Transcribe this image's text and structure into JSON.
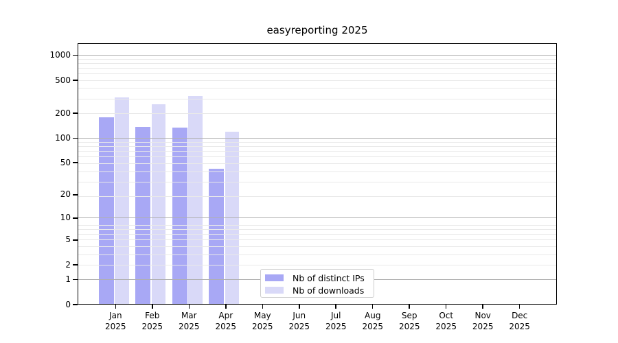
{
  "figure": {
    "background": "#ffffff",
    "axis_color": "#000000"
  },
  "chart_data": {
    "type": "bar",
    "title": "easyreporting 2025",
    "categories": [
      "Jan",
      "Feb",
      "Mar",
      "Apr",
      "May",
      "Jun",
      "Jul",
      "Aug",
      "Sep",
      "Oct",
      "Nov",
      "Dec"
    ],
    "year": "2025",
    "series": [
      {
        "name": "Nb of distinct IPs",
        "color": "#a8a8f5",
        "values": [
          180,
          137,
          135,
          42,
          null,
          null,
          null,
          null,
          null,
          null,
          null,
          null
        ]
      },
      {
        "name": "Nb of downloads",
        "color": "#d9d9f8",
        "values": [
          312,
          256,
          324,
          119,
          null,
          null,
          null,
          null,
          null,
          null,
          null,
          null
        ]
      }
    ],
    "yscale": "log(1+x)",
    "yticks": [
      0,
      1,
      2,
      5,
      10,
      20,
      50,
      100,
      200,
      500,
      1000
    ],
    "xlabel": "",
    "ylabel": "",
    "grid": {
      "horizontal": true,
      "major_levels": [
        1,
        10,
        100,
        1000
      ],
      "major_color": "#b0b0b0",
      "minor_color": "#e9e9e9"
    },
    "legend": {
      "location": "inside-bottom-center"
    }
  }
}
